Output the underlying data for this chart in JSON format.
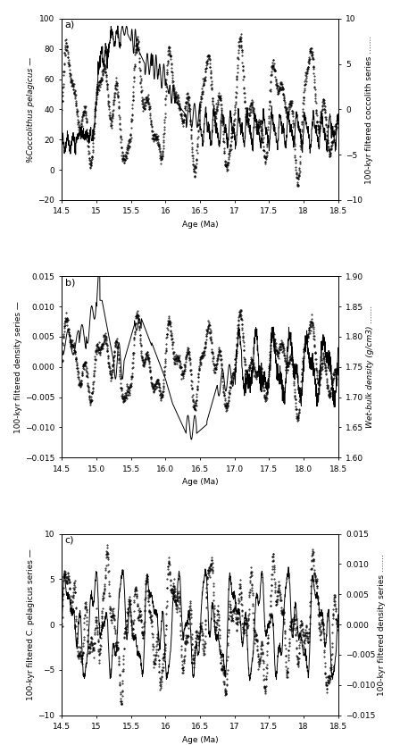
{
  "xlim": [
    14.5,
    18.5
  ],
  "xlabel": "Age (Ma)",
  "panel_a": {
    "label": "a)",
    "left_ylabel": "%Coccolithus pelagicus —",
    "right_ylabel": "100-kyr filtered coccolith series .......",
    "left_ylim": [
      -20,
      100
    ],
    "right_ylim": [
      -10,
      10
    ],
    "left_yticks": [
      -20,
      0,
      20,
      40,
      60,
      80,
      100
    ],
    "right_yticks": [
      -10,
      -5,
      0,
      5,
      10
    ]
  },
  "panel_b": {
    "label": "b)",
    "left_ylabel": "100-kyr filtered density series —",
    "right_ylabel": "Wet-bulk density (g/cm3) .......",
    "left_ylim": [
      -0.015,
      0.015
    ],
    "right_ylim": [
      1.6,
      1.9
    ],
    "left_yticks": [
      -0.015,
      -0.01,
      -0.005,
      0,
      0.005,
      0.01,
      0.015
    ],
    "right_yticks": [
      1.6,
      1.65,
      1.7,
      1.75,
      1.8,
      1.85,
      1.9
    ]
  },
  "panel_c": {
    "label": "c)",
    "left_ylabel": "100-kyr filtered C. pelagicus series —",
    "right_ylabel": "100-kyr filtered density series .......",
    "left_ylim": [
      -10,
      10
    ],
    "right_ylim": [
      -0.015,
      0.015
    ],
    "left_yticks": [
      -10,
      -5,
      0,
      5,
      10
    ],
    "right_yticks": [
      -0.015,
      -0.01,
      -0.005,
      0,
      0.005,
      0.01,
      0.015
    ]
  },
  "xticks": [
    14.5,
    15.0,
    15.5,
    16.0,
    16.5,
    17.0,
    17.5,
    18.0,
    18.5
  ],
  "xticklabels_a": [
    "14.5",
    "15",
    "15.5",
    "16",
    "16.5",
    "17",
    "17.5",
    "18",
    "18.5"
  ],
  "xticklabels_b": [
    "14.5",
    "15.0",
    "15.5",
    "16.0",
    "16.5",
    "17.0",
    "17.5",
    "18.0",
    "18.5"
  ],
  "xticklabels_c": [
    "14.5",
    "15",
    "15.5",
    "16",
    "16.5",
    "17",
    "17.5",
    "18",
    "18.5"
  ],
  "solid_color": "black",
  "dotted_color": "black",
  "bg_color": "white",
  "fontsize_label": 6.5,
  "fontsize_tick": 6.5,
  "fontsize_panel": 8
}
